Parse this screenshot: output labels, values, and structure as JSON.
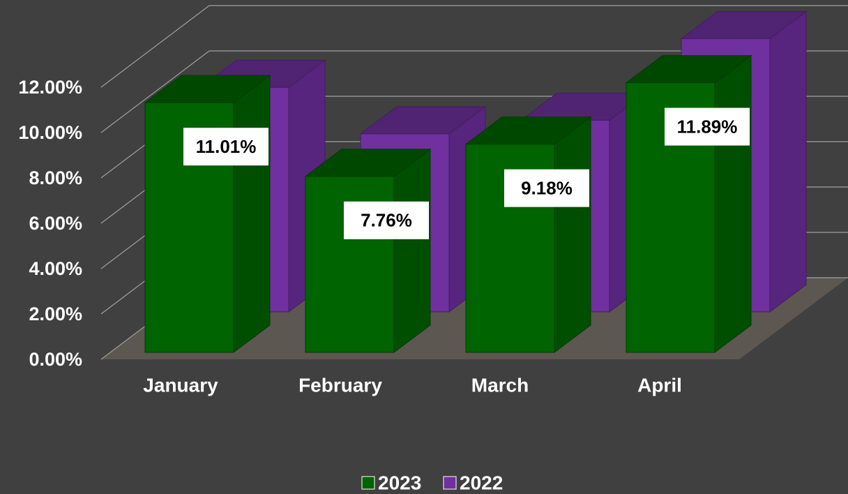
{
  "chart_data": {
    "type": "bar3d",
    "categories": [
      "January",
      "February",
      "March",
      "April"
    ],
    "series": [
      {
        "name": "2023",
        "color": "#006400",
        "values": [
          11.01,
          7.76,
          9.18,
          11.89
        ],
        "value_labels": [
          "11.01%",
          "7.76%",
          "9.18%",
          "11.89%"
        ]
      },
      {
        "name": "2022",
        "color": "#7030a0",
        "values": [
          9.9,
          7.85,
          8.45,
          12.05
        ]
      }
    ],
    "ylim": [
      0,
      12
    ],
    "yticks": [
      {
        "value": 0,
        "label": "0.00%"
      },
      {
        "value": 2,
        "label": "2.00%"
      },
      {
        "value": 4,
        "label": "4.00%"
      },
      {
        "value": 6,
        "label": "6.00%"
      },
      {
        "value": 8,
        "label": "8.00%"
      },
      {
        "value": 10,
        "label": "10.00%"
      },
      {
        "value": 12,
        "label": "12.00%"
      }
    ],
    "grid": true,
    "legend": "bottom"
  }
}
